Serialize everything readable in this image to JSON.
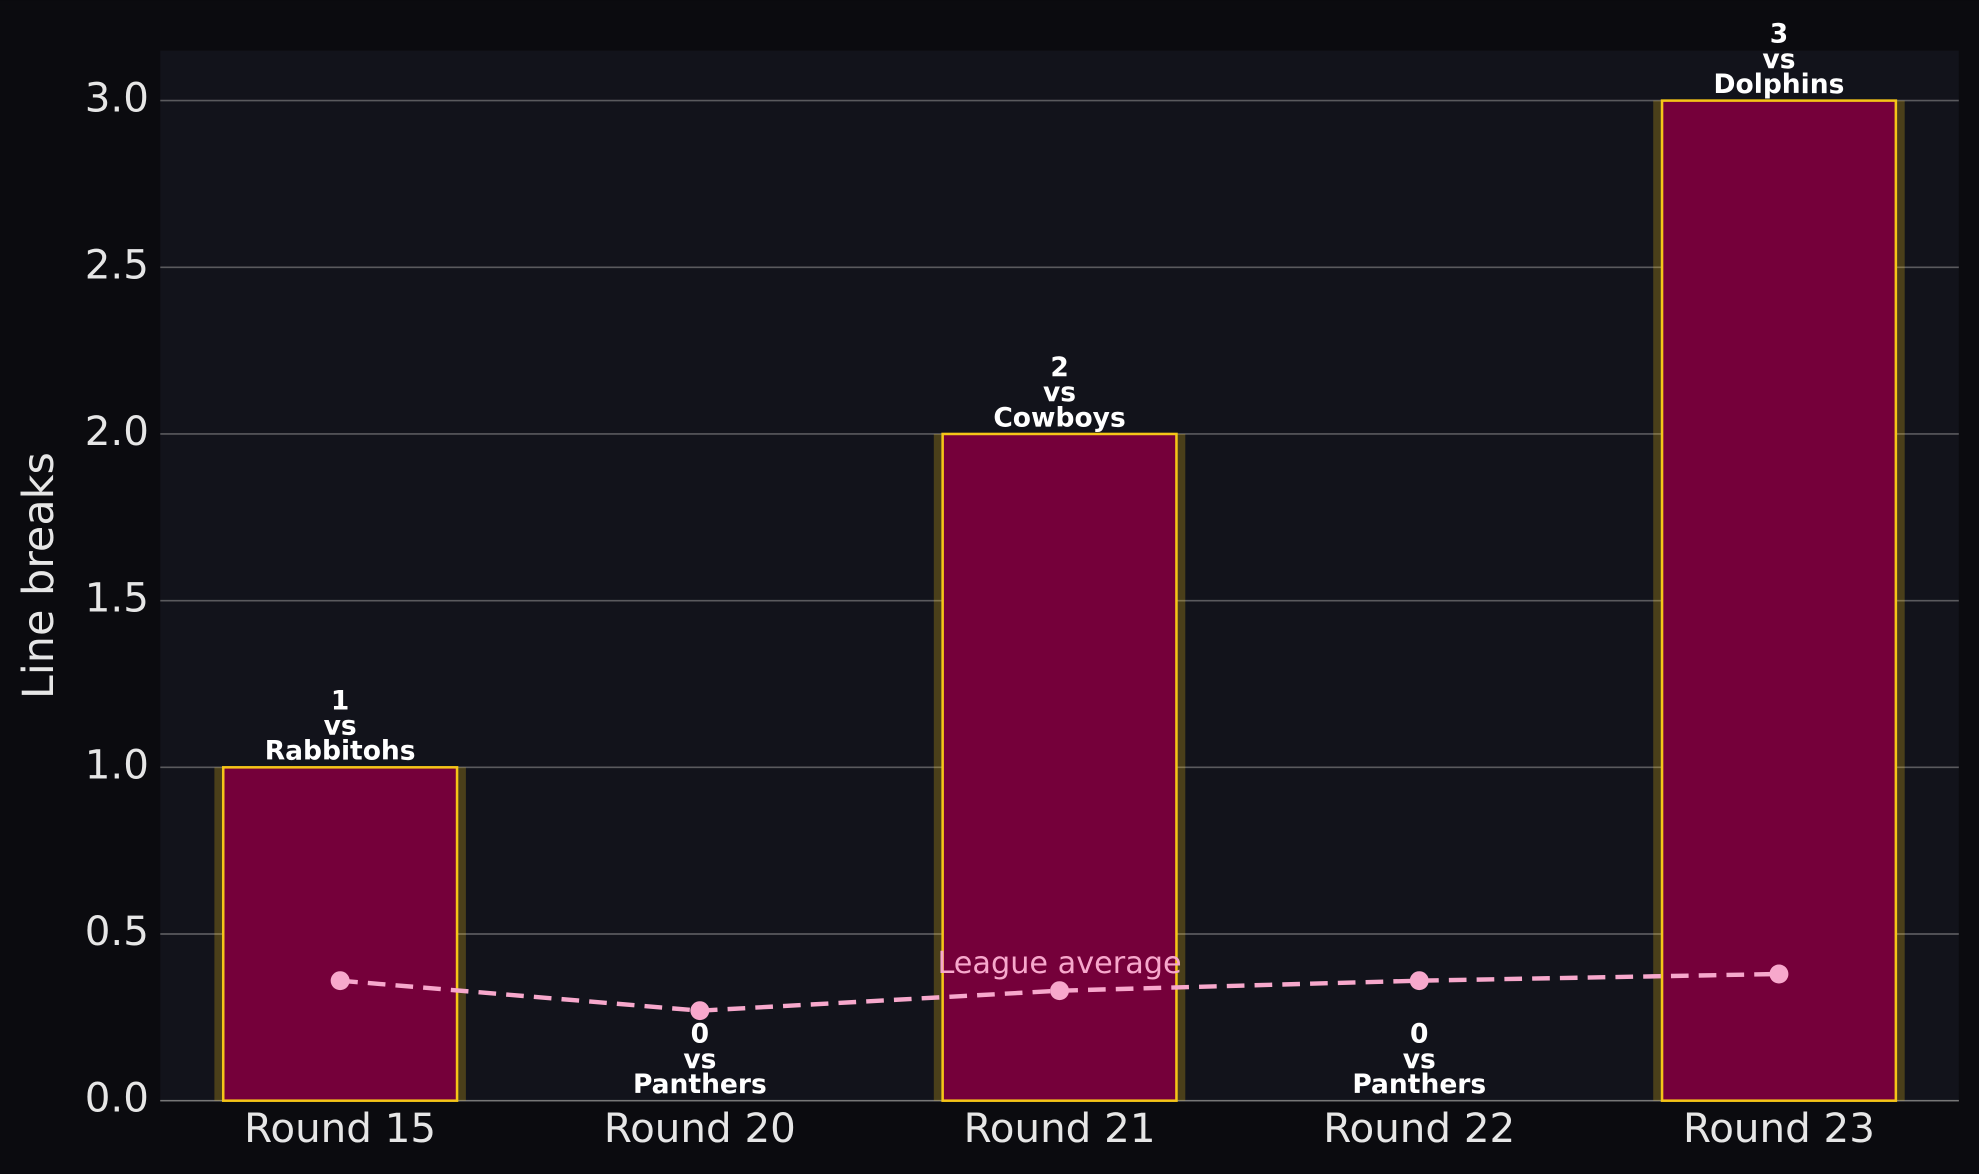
{
  "chart_data": {
    "type": "bar",
    "ylabel": "Line breaks",
    "categories": [
      "Round 15",
      "Round 20",
      "Round 21",
      "Round 22",
      "Round 23"
    ],
    "values": [
      1,
      0,
      2,
      0,
      3
    ],
    "opponents": [
      "Rabbitohs",
      "Panthers",
      "Cowboys",
      "Panthers",
      "Dolphins"
    ],
    "label_joiner": "vs",
    "color": "#75003a",
    "edge_color": "#f5c518",
    "ylim": [
      0,
      3.15
    ],
    "yticks": [
      {
        "value": 0,
        "label": "0.0"
      },
      0.5,
      {
        "value": 1,
        "label": "1.0"
      },
      1.5,
      {
        "value": 2,
        "label": "2.0"
      },
      2.5,
      {
        "value": 3,
        "label": "3.0"
      }
    ],
    "grid": true,
    "line_series": {
      "name": "League average",
      "color": "#f7a8cc",
      "values": [
        0.36,
        0.27,
        0.33,
        0.36,
        0.38
      ]
    }
  }
}
